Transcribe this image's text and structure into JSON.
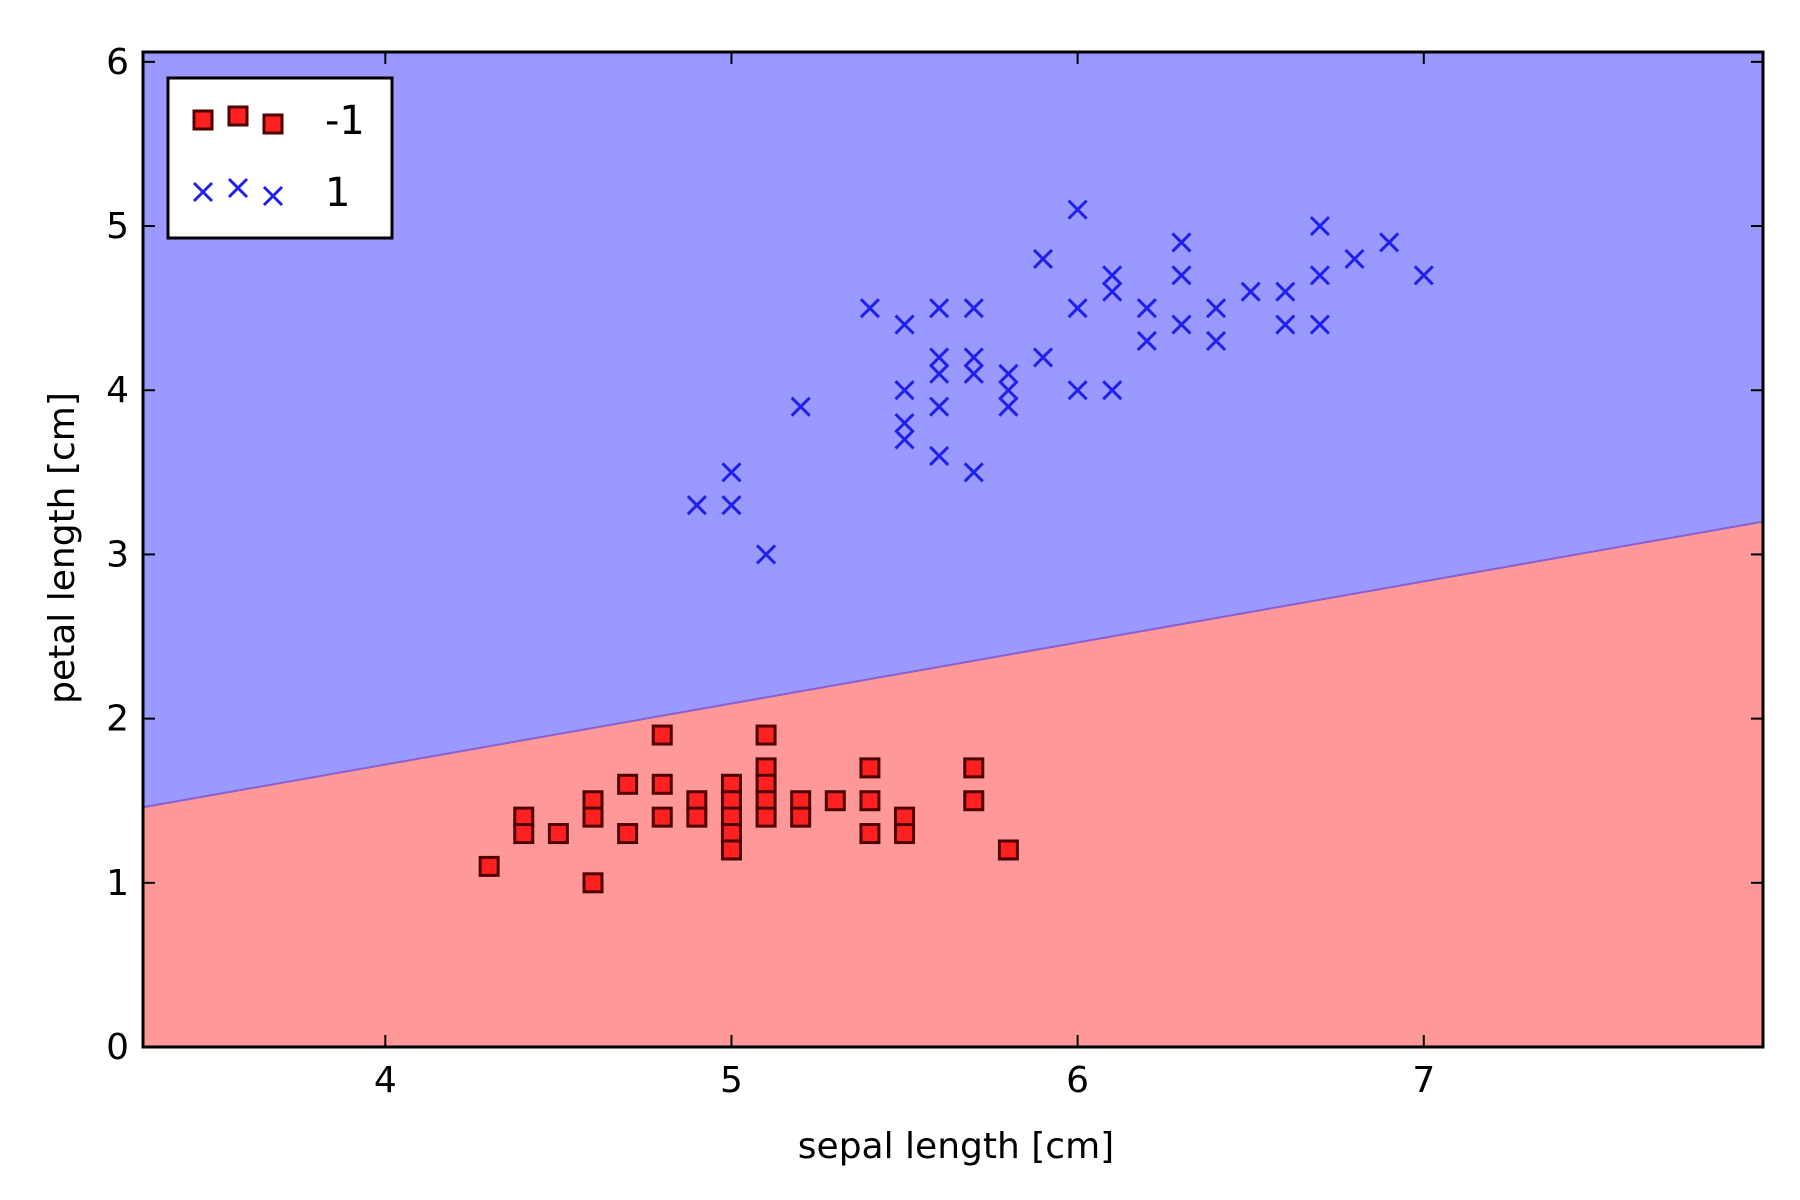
{
  "chart_data": {
    "type": "scatter",
    "title": "",
    "xlabel": "sepal length [cm]",
    "ylabel": "petal length [cm]",
    "xlim": [
      3.3,
      7.98
    ],
    "ylim": [
      0,
      6.06
    ],
    "xticks": [
      4,
      5,
      6,
      7
    ],
    "yticks": [
      0,
      1,
      2,
      3,
      4,
      5,
      6
    ],
    "grid": false,
    "legend_position": "upper left",
    "decision_boundary": {
      "x": [
        3.3,
        7.98
      ],
      "y": [
        1.46,
        3.2
      ]
    },
    "regions": [
      {
        "class": "-1",
        "color": "#ff9999",
        "side": "below"
      },
      {
        "class": "1",
        "color": "#9999ff",
        "side": "above"
      }
    ],
    "series": [
      {
        "name": "-1",
        "marker": "square",
        "color": "#ff2020",
        "edge_color": "#4d0000",
        "points": [
          [
            4.3,
            1.1
          ],
          [
            4.4,
            1.4
          ],
          [
            4.4,
            1.3
          ],
          [
            4.5,
            1.3
          ],
          [
            4.6,
            1.5
          ],
          [
            4.6,
            1.4
          ],
          [
            4.6,
            1.0
          ],
          [
            4.7,
            1.6
          ],
          [
            4.7,
            1.3
          ],
          [
            4.8,
            1.9
          ],
          [
            4.8,
            1.6
          ],
          [
            4.8,
            1.4
          ],
          [
            4.9,
            1.5
          ],
          [
            4.9,
            1.4
          ],
          [
            5.0,
            1.6
          ],
          [
            5.0,
            1.5
          ],
          [
            5.0,
            1.4
          ],
          [
            5.0,
            1.3
          ],
          [
            5.0,
            1.2
          ],
          [
            5.1,
            1.9
          ],
          [
            5.1,
            1.7
          ],
          [
            5.1,
            1.6
          ],
          [
            5.1,
            1.5
          ],
          [
            5.1,
            1.4
          ],
          [
            5.2,
            1.5
          ],
          [
            5.2,
            1.4
          ],
          [
            5.3,
            1.5
          ],
          [
            5.4,
            1.7
          ],
          [
            5.4,
            1.5
          ],
          [
            5.4,
            1.3
          ],
          [
            5.5,
            1.4
          ],
          [
            5.5,
            1.3
          ],
          [
            5.7,
            1.7
          ],
          [
            5.7,
            1.5
          ],
          [
            5.8,
            1.2
          ]
        ]
      },
      {
        "name": "1",
        "marker": "x",
        "color": "#2020ee",
        "points": [
          [
            4.9,
            3.3
          ],
          [
            5.0,
            3.5
          ],
          [
            5.0,
            3.3
          ],
          [
            5.1,
            3.0
          ],
          [
            5.2,
            3.9
          ],
          [
            5.4,
            4.5
          ],
          [
            5.5,
            4.4
          ],
          [
            5.5,
            4.0
          ],
          [
            5.5,
            3.8
          ],
          [
            5.5,
            3.7
          ],
          [
            5.6,
            4.5
          ],
          [
            5.6,
            4.2
          ],
          [
            5.6,
            4.1
          ],
          [
            5.6,
            3.9
          ],
          [
            5.6,
            3.6
          ],
          [
            5.7,
            4.5
          ],
          [
            5.7,
            4.2
          ],
          [
            5.7,
            4.1
          ],
          [
            5.7,
            3.5
          ],
          [
            5.8,
            4.1
          ],
          [
            5.8,
            4.0
          ],
          [
            5.8,
            3.9
          ],
          [
            5.9,
            4.8
          ],
          [
            5.9,
            4.2
          ],
          [
            6.0,
            5.1
          ],
          [
            6.0,
            4.5
          ],
          [
            6.0,
            4.0
          ],
          [
            6.1,
            4.7
          ],
          [
            6.1,
            4.6
          ],
          [
            6.1,
            4.0
          ],
          [
            6.2,
            4.5
          ],
          [
            6.2,
            4.3
          ],
          [
            6.3,
            4.9
          ],
          [
            6.3,
            4.7
          ],
          [
            6.3,
            4.4
          ],
          [
            6.4,
            4.5
          ],
          [
            6.4,
            4.3
          ],
          [
            6.5,
            4.6
          ],
          [
            6.6,
            4.6
          ],
          [
            6.6,
            4.4
          ],
          [
            6.7,
            5.0
          ],
          [
            6.7,
            4.7
          ],
          [
            6.7,
            4.4
          ],
          [
            6.8,
            4.8
          ],
          [
            6.9,
            4.9
          ],
          [
            7.0,
            4.7
          ]
        ]
      }
    ]
  }
}
